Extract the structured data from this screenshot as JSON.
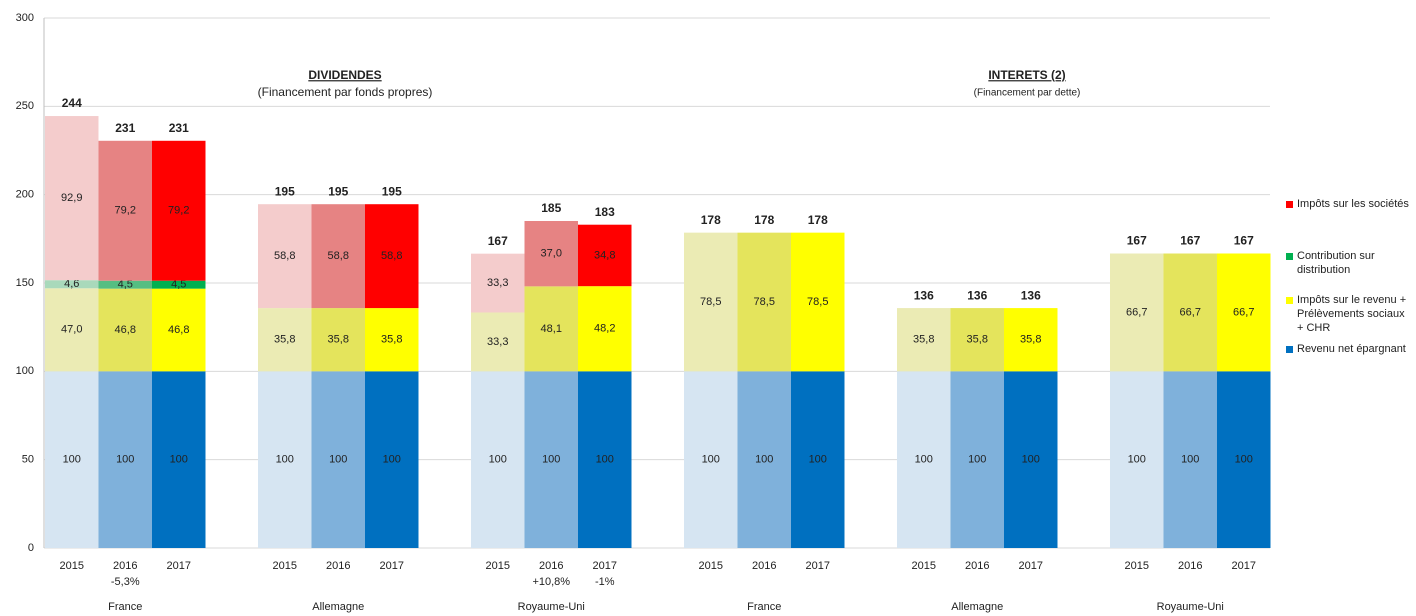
{
  "chart_data": {
    "type": "stacked_bar",
    "ylim": [
      0,
      300
    ],
    "yticks": [
      0,
      50,
      100,
      150,
      200,
      250,
      300
    ],
    "grid": true,
    "annotations": [
      {
        "title": "DIVIDENDES",
        "subtitle": "(Financement par fonds propres)"
      },
      {
        "title": "INTERETS (2)",
        "subtitle": "(Financement par dette)"
      }
    ],
    "groups": [
      "France",
      "Allemagne",
      "Royaume-Uni",
      "France",
      "Allemagne",
      "Royaume-Uni"
    ],
    "categories": [
      "2015",
      "2016",
      "2017",
      "2015",
      "2016",
      "2017",
      "2015",
      "2016",
      "2017",
      "2015",
      "2016",
      "2017",
      "2015",
      "2016",
      "2017",
      "2015",
      "2016",
      "2017"
    ],
    "category_notes": [
      null,
      "-5,3%",
      null,
      null,
      null,
      null,
      null,
      "+10,8%",
      "-1%",
      null,
      null,
      null,
      null,
      null,
      null,
      null,
      null,
      null
    ],
    "totals": [
      244,
      231,
      231,
      195,
      195,
      195,
      167,
      185,
      183,
      178,
      178,
      178,
      136,
      136,
      136,
      167,
      167,
      167
    ],
    "series": [
      {
        "name": "Revenu net épargnant",
        "colors": [
          "#d6e5f2",
          "#7fb1db",
          "#0070c0"
        ],
        "values": [
          100,
          100,
          100,
          100,
          100,
          100,
          100,
          100,
          100,
          100,
          100,
          100,
          100,
          100,
          100,
          100,
          100,
          100
        ]
      },
      {
        "name": "Impôts sur le revenu + Prélèvements sociaux + CHR",
        "colors": [
          "#ebebb4",
          "#e4e45c",
          "#ffff00"
        ],
        "values": [
          47.0,
          46.8,
          46.8,
          35.8,
          35.8,
          35.8,
          33.3,
          48.1,
          48.2,
          78.5,
          78.5,
          78.5,
          35.8,
          35.8,
          35.8,
          66.7,
          66.7,
          66.7
        ],
        "value_labels": [
          "47,0",
          "46,8",
          "46,8",
          "35,8",
          "35,8",
          "35,8",
          "33,3",
          "48,1",
          "48,2",
          "78,5",
          "78,5",
          "78,5",
          "35,8",
          "35,8",
          "35,8",
          "66,7",
          "66,7",
          "66,7"
        ]
      },
      {
        "name": "Contribution sur distribution",
        "colors": [
          "#a9d9bb",
          "#55be82",
          "#00b050"
        ],
        "values": [
          4.6,
          4.5,
          4.5,
          null,
          null,
          null,
          null,
          null,
          null,
          null,
          null,
          null,
          null,
          null,
          null,
          null,
          null,
          null
        ],
        "value_labels": [
          "4,6",
          "4,5",
          "4,5",
          null,
          null,
          null,
          null,
          null,
          null,
          null,
          null,
          null,
          null,
          null,
          null,
          null,
          null,
          null
        ]
      },
      {
        "name": "Impôts sur les sociétés",
        "colors": [
          "#f4cccc",
          "#e68383",
          "#ff0000"
        ],
        "values": [
          92.9,
          79.2,
          79.2,
          58.8,
          58.8,
          58.8,
          33.3,
          37.0,
          34.8,
          null,
          null,
          null,
          null,
          null,
          null,
          null,
          null,
          null
        ],
        "value_labels": [
          "92,9",
          "79,2",
          "79,2",
          "58,8",
          "58,8",
          "58,8",
          "33,3",
          "37,0",
          "34,8",
          null,
          null,
          null,
          null,
          null,
          null,
          null,
          null,
          null
        ]
      }
    ]
  }
}
